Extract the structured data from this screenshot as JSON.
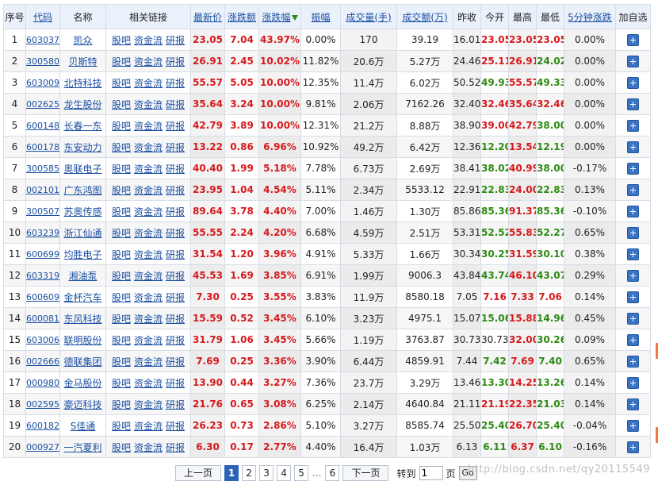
{
  "columns": {
    "seq": "序号",
    "code": "代码",
    "name": "名称",
    "links": "相关链接",
    "price": "最新价",
    "change": "涨跌额",
    "pct": "涨跌幅",
    "amplitude": "振幅",
    "volume": "成交量(手)",
    "turnover": "成交额(万)",
    "prev": "昨收",
    "open": "今开",
    "high": "最高",
    "low": "最低",
    "speed": "5分钟涨跌",
    "add": "加自选"
  },
  "link_labels": {
    "guba": "股吧",
    "fund": "资金流",
    "report": "研报"
  },
  "rows": [
    {
      "seq": "1",
      "code": "603037",
      "name": "凯众",
      "price": "23.05",
      "change": "7.04",
      "pct": "43.97%",
      "amp": "0.00%",
      "vol": "170",
      "amt": "39.19",
      "prev": "16.01",
      "open": "23.05",
      "high": "23.05",
      "low": "23.05",
      "speed": "0.00%",
      "open_dir": "up",
      "high_dir": "up",
      "low_dir": "up"
    },
    {
      "seq": "2",
      "code": "300580",
      "name": "贝斯特",
      "price": "26.91",
      "change": "2.45",
      "pct": "10.02%",
      "amp": "11.82%",
      "vol": "20.6万",
      "amt": "5.27万",
      "prev": "24.46",
      "open": "25.11",
      "high": "26.91",
      "low": "24.02",
      "speed": "0.00%",
      "open_dir": "up",
      "high_dir": "up",
      "low_dir": "down"
    },
    {
      "seq": "3",
      "code": "603009",
      "name": "北特科技",
      "price": "55.57",
      "change": "5.05",
      "pct": "10.00%",
      "amp": "12.35%",
      "vol": "11.4万",
      "amt": "6.02万",
      "prev": "50.52",
      "open": "49.93",
      "high": "55.57",
      "low": "49.33",
      "speed": "0.00%",
      "open_dir": "down",
      "high_dir": "up",
      "low_dir": "down"
    },
    {
      "seq": "4",
      "code": "002625",
      "name": "龙生股份",
      "price": "35.64",
      "change": "3.24",
      "pct": "10.00%",
      "amp": "9.81%",
      "vol": "2.06万",
      "amt": "7162.26",
      "prev": "32.40",
      "open": "32.46",
      "high": "35.64",
      "low": "32.46",
      "speed": "0.00%",
      "open_dir": "up",
      "high_dir": "up",
      "low_dir": "up"
    },
    {
      "seq": "5",
      "code": "600148",
      "name": "长春一东",
      "price": "42.79",
      "change": "3.89",
      "pct": "10.00%",
      "amp": "12.31%",
      "vol": "21.2万",
      "amt": "8.88万",
      "prev": "38.90",
      "open": "39.00",
      "high": "42.79",
      "low": "38.00",
      "speed": "0.00%",
      "open_dir": "up",
      "high_dir": "up",
      "low_dir": "down"
    },
    {
      "seq": "6",
      "code": "600178",
      "name": "东安动力",
      "price": "13.22",
      "change": "0.86",
      "pct": "6.96%",
      "amp": "10.92%",
      "vol": "49.2万",
      "amt": "6.42万",
      "prev": "12.36",
      "open": "12.20",
      "high": "13.54",
      "low": "12.19",
      "speed": "0.00%",
      "open_dir": "down",
      "high_dir": "up",
      "low_dir": "down"
    },
    {
      "seq": "7",
      "code": "300585",
      "name": "奥联电子",
      "price": "40.40",
      "change": "1.99",
      "pct": "5.18%",
      "amp": "7.78%",
      "vol": "6.73万",
      "amt": "2.69万",
      "prev": "38.41",
      "open": "38.02",
      "high": "40.99",
      "low": "38.00",
      "speed": "-0.17%",
      "open_dir": "down",
      "high_dir": "up",
      "low_dir": "down"
    },
    {
      "seq": "8",
      "code": "002101",
      "name": "广东鸿图",
      "price": "23.95",
      "change": "1.04",
      "pct": "4.54%",
      "amp": "5.11%",
      "vol": "2.34万",
      "amt": "5533.12",
      "prev": "22.91",
      "open": "22.83",
      "high": "24.00",
      "low": "22.83",
      "speed": "0.13%",
      "open_dir": "down",
      "high_dir": "up",
      "low_dir": "down"
    },
    {
      "seq": "9",
      "code": "300507",
      "name": "苏奥传感",
      "price": "89.64",
      "change": "3.78",
      "pct": "4.40%",
      "amp": "7.00%",
      "vol": "1.46万",
      "amt": "1.30万",
      "prev": "85.86",
      "open": "85.36",
      "high": "91.37",
      "low": "85.36",
      "speed": "-0.10%",
      "open_dir": "down",
      "high_dir": "up",
      "low_dir": "down"
    },
    {
      "seq": "10",
      "code": "603239",
      "name": "浙江仙通",
      "price": "55.55",
      "change": "2.24",
      "pct": "4.20%",
      "amp": "6.68%",
      "vol": "4.59万",
      "amt": "2.51万",
      "prev": "53.31",
      "open": "52.52",
      "high": "55.83",
      "low": "52.27",
      "speed": "0.65%",
      "open_dir": "down",
      "high_dir": "up",
      "low_dir": "down"
    },
    {
      "seq": "11",
      "code": "600699",
      "name": "均胜电子",
      "price": "31.54",
      "change": "1.20",
      "pct": "3.96%",
      "amp": "4.91%",
      "vol": "5.33万",
      "amt": "1.66万",
      "prev": "30.34",
      "open": "30.25",
      "high": "31.59",
      "low": "30.10",
      "speed": "0.38%",
      "open_dir": "down",
      "high_dir": "up",
      "low_dir": "down"
    },
    {
      "seq": "12",
      "code": "603319",
      "name": "湘油泵",
      "price": "45.53",
      "change": "1.69",
      "pct": "3.85%",
      "amp": "6.91%",
      "vol": "1.99万",
      "amt": "9006.3",
      "prev": "43.84",
      "open": "43.74",
      "high": "46.10",
      "low": "43.07",
      "speed": "0.29%",
      "open_dir": "down",
      "high_dir": "up",
      "low_dir": "down"
    },
    {
      "seq": "13",
      "code": "600609",
      "name": "金杯汽车",
      "price": "7.30",
      "change": "0.25",
      "pct": "3.55%",
      "amp": "3.83%",
      "vol": "11.9万",
      "amt": "8580.18",
      "prev": "7.05",
      "open": "7.16",
      "high": "7.33",
      "low": "7.06",
      "speed": "0.14%",
      "open_dir": "up",
      "high_dir": "up",
      "low_dir": "up"
    },
    {
      "seq": "14",
      "code": "600081",
      "name": "东风科技",
      "price": "15.59",
      "change": "0.52",
      "pct": "3.45%",
      "amp": "6.10%",
      "vol": "3.23万",
      "amt": "4975.1",
      "prev": "15.07",
      "open": "15.06",
      "high": "15.88",
      "low": "14.96",
      "speed": "0.45%",
      "open_dir": "down",
      "high_dir": "up",
      "low_dir": "down"
    },
    {
      "seq": "15",
      "code": "603006",
      "name": "联明股份",
      "price": "31.79",
      "change": "1.06",
      "pct": "3.45%",
      "amp": "5.66%",
      "vol": "1.19万",
      "amt": "3763.87",
      "prev": "30.73",
      "open": "30.73",
      "high": "32.00",
      "low": "30.26",
      "speed": "0.09%",
      "open_dir": "neu",
      "high_dir": "up",
      "low_dir": "down"
    },
    {
      "seq": "16",
      "code": "002666",
      "name": "德联集团",
      "price": "7.69",
      "change": "0.25",
      "pct": "3.36%",
      "amp": "3.90%",
      "vol": "6.44万",
      "amt": "4859.91",
      "prev": "7.44",
      "open": "7.42",
      "high": "7.69",
      "low": "7.40",
      "speed": "0.65%",
      "open_dir": "down",
      "high_dir": "up",
      "low_dir": "down"
    },
    {
      "seq": "17",
      "code": "000980",
      "name": "金马股份",
      "price": "13.90",
      "change": "0.44",
      "pct": "3.27%",
      "amp": "7.36%",
      "vol": "23.7万",
      "amt": "3.29万",
      "prev": "13.46",
      "open": "13.30",
      "high": "14.25",
      "low": "13.26",
      "speed": "0.14%",
      "open_dir": "down",
      "high_dir": "up",
      "low_dir": "down"
    },
    {
      "seq": "18",
      "code": "002595",
      "name": "豪迈科技",
      "price": "21.76",
      "change": "0.65",
      "pct": "3.08%",
      "amp": "6.25%",
      "vol": "2.14万",
      "amt": "4640.84",
      "prev": "21.11",
      "open": "21.19",
      "high": "22.35",
      "low": "21.03",
      "speed": "0.14%",
      "open_dir": "up",
      "high_dir": "up",
      "low_dir": "down"
    },
    {
      "seq": "19",
      "code": "600182",
      "name": "S佳通",
      "price": "26.23",
      "change": "0.73",
      "pct": "2.86%",
      "amp": "5.10%",
      "vol": "3.27万",
      "amt": "8585.74",
      "prev": "25.50",
      "open": "25.40",
      "high": "26.70",
      "low": "25.40",
      "speed": "-0.04%",
      "open_dir": "down",
      "high_dir": "up",
      "low_dir": "down"
    },
    {
      "seq": "20",
      "code": "000927",
      "name": "一汽夏利",
      "price": "6.30",
      "change": "0.17",
      "pct": "2.77%",
      "amp": "4.40%",
      "vol": "16.4万",
      "amt": "1.03万",
      "prev": "6.13",
      "open": "6.11",
      "high": "6.37",
      "low": "6.10",
      "speed": "-0.16%",
      "open_dir": "down",
      "high_dir": "up",
      "low_dir": "down"
    }
  ],
  "pager": {
    "prev": "上一页",
    "pages": [
      "1",
      "2",
      "3",
      "4",
      "5"
    ],
    "ellipsis": "...",
    "last": "6",
    "next": "下一页",
    "goto_label": "转到",
    "goto_value": "1",
    "page_unit": "页",
    "go": "Go"
  },
  "watermark": "http://blog.csdn.net/qy20115549",
  "colors": {
    "up": "#d7191c",
    "down": "#2d8a12",
    "link": "#1b4fa3"
  }
}
